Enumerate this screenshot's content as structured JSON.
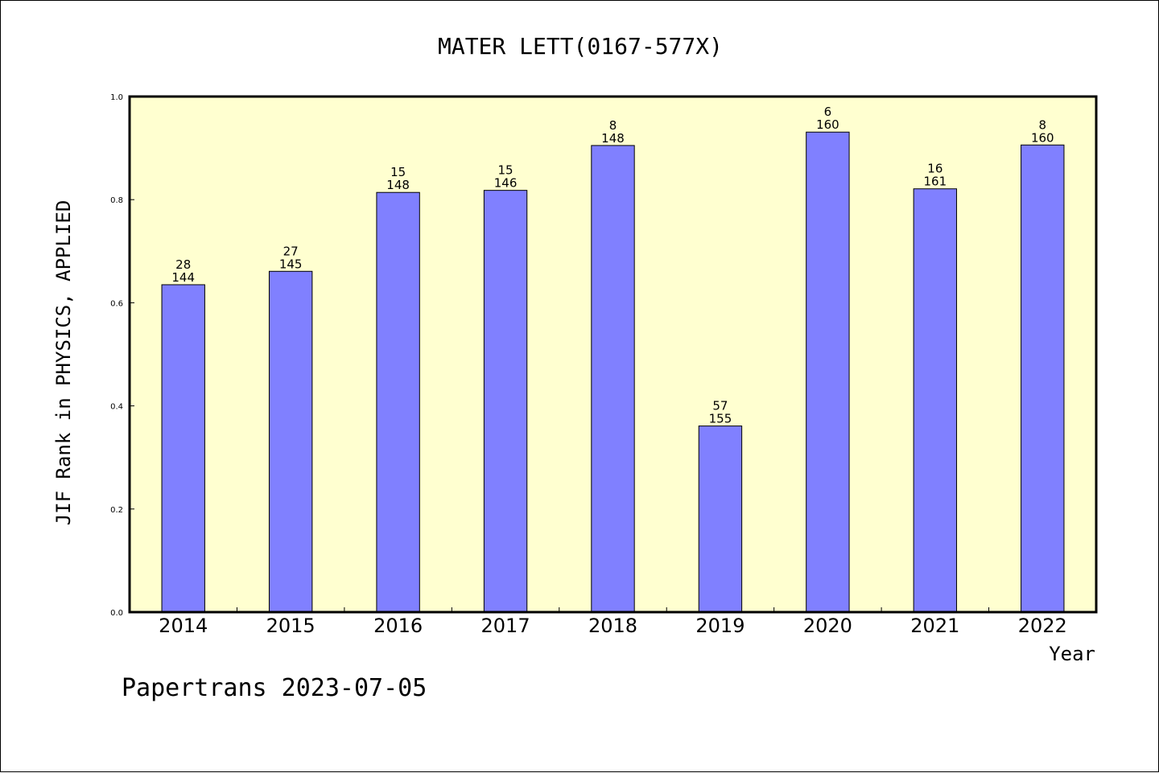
{
  "chart_data": {
    "type": "bar",
    "title": "MATER LETT(0167-577X)",
    "xlabel": "Year",
    "ylabel": "JIF Rank in PHYSICS, APPLIED",
    "ylim": [
      0,
      1.0
    ],
    "yticks": [
      "0.0",
      "0.2",
      "0.4",
      "0.6",
      "0.8",
      "1.0"
    ],
    "categories": [
      "2014",
      "2015",
      "2016",
      "2017",
      "2018",
      "2019",
      "2020",
      "2021",
      "2022"
    ],
    "values": [
      0.635,
      0.661,
      0.814,
      0.818,
      0.905,
      0.361,
      0.931,
      0.821,
      0.906
    ],
    "rank": [
      "28",
      "27",
      "15",
      "15",
      "8",
      "57",
      "6",
      "16",
      "8"
    ],
    "total": [
      "144",
      "145",
      "148",
      "146",
      "148",
      "155",
      "160",
      "161",
      "160"
    ],
    "bar_color": "#8080ff",
    "plot_background": "#ffffd0",
    "grid": false,
    "legend": "none"
  },
  "footer": "Papertrans 2023-07-05"
}
